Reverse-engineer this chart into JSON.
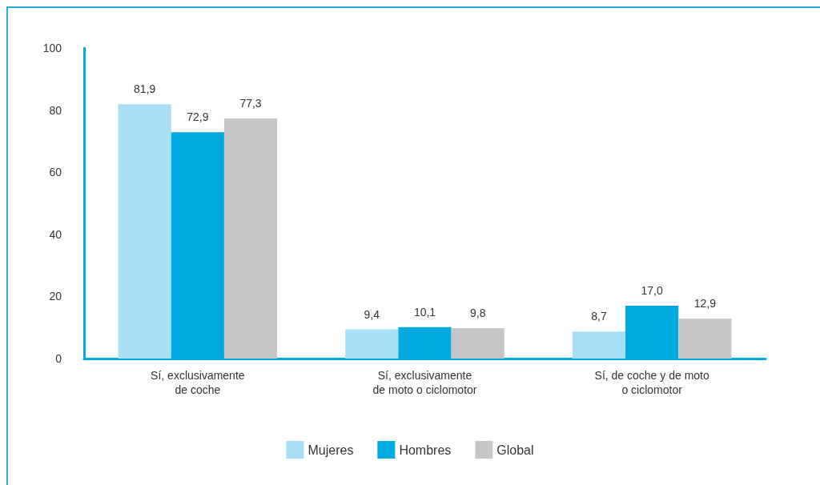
{
  "chart_data": {
    "type": "bar",
    "categories": [
      "Sí, exclusivamente\nde coche",
      "Sí, exclusivamente\nde moto o ciclomotor",
      "Sí, de coche y de moto\no ciclomotor"
    ],
    "series": [
      {
        "name": "Mujeres",
        "color": "#a8dff5",
        "values": [
          81.9,
          9.4,
          8.7
        ],
        "value_labels": [
          "81,9",
          "9,4",
          "8,7"
        ]
      },
      {
        "name": "Hombres",
        "color": "#00a9e0",
        "values": [
          72.9,
          10.1,
          17.0
        ],
        "value_labels": [
          "72,9",
          "10,1",
          "17,0"
        ]
      },
      {
        "name": "Global",
        "color": "#c6c5c8",
        "values": [
          77.3,
          9.8,
          12.9
        ],
        "value_labels": [
          "77,3",
          "9,8",
          "12,9"
        ]
      }
    ],
    "ylim": [
      0,
      100
    ],
    "yticks": [
      0,
      20,
      40,
      60,
      80,
      100
    ],
    "grid": false,
    "legend": "bottom"
  }
}
